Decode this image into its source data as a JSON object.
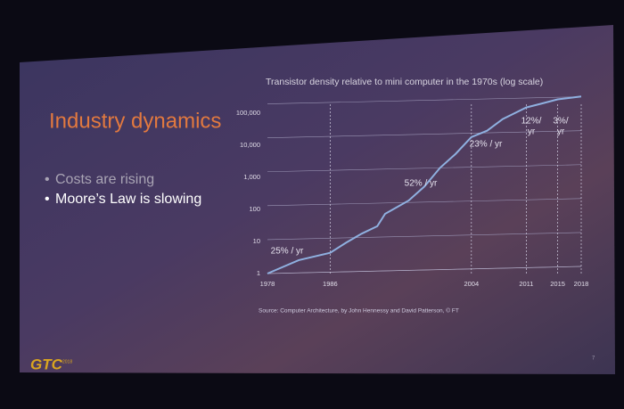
{
  "slide": {
    "title": "Industry dynamics",
    "bullets": [
      "Costs are rising",
      "Moore’s Law is slowing"
    ],
    "source": "Source: Computer Architecture, by John Hennessy and David Patterson, © FT",
    "logo": "GTC",
    "logo_year": "2018",
    "page_number": "7"
  },
  "chart_data": {
    "type": "line",
    "title": "Transistor density relative to mini computer in the 1970s (log scale)",
    "log_scale": true,
    "grid": true,
    "color": "#8fb0e0",
    "x": [
      1978,
      1982,
      1986,
      1988,
      1990,
      1992,
      1993,
      1996,
      1998,
      2000,
      2002,
      2004,
      2006,
      2008,
      2011,
      2013,
      2015,
      2018
    ],
    "values": [
      1,
      2.5,
      4,
      8,
      15,
      25,
      60,
      150,
      400,
      1500,
      4000,
      13000,
      20000,
      45000,
      100000,
      130000,
      170000,
      200000
    ],
    "xlim": [
      1978,
      2018
    ],
    "xticks": [
      1978,
      1986,
      2004,
      2011,
      2015,
      2018
    ],
    "ylim": [
      1,
      300000
    ],
    "yticks": [
      1,
      10,
      100,
      {
        "value": 1000,
        "label": "1,000"
      },
      {
        "value": 10000,
        "label": "10,000"
      },
      {
        "value": 100000,
        "label": "100,000"
      }
    ],
    "annotations": [
      [
        "25% / yr"
      ],
      [
        "52% / yr"
      ],
      [
        "23% / yr"
      ],
      [
        "12%/",
        "yr"
      ],
      [
        "3%/",
        "yr"
      ]
    ]
  }
}
